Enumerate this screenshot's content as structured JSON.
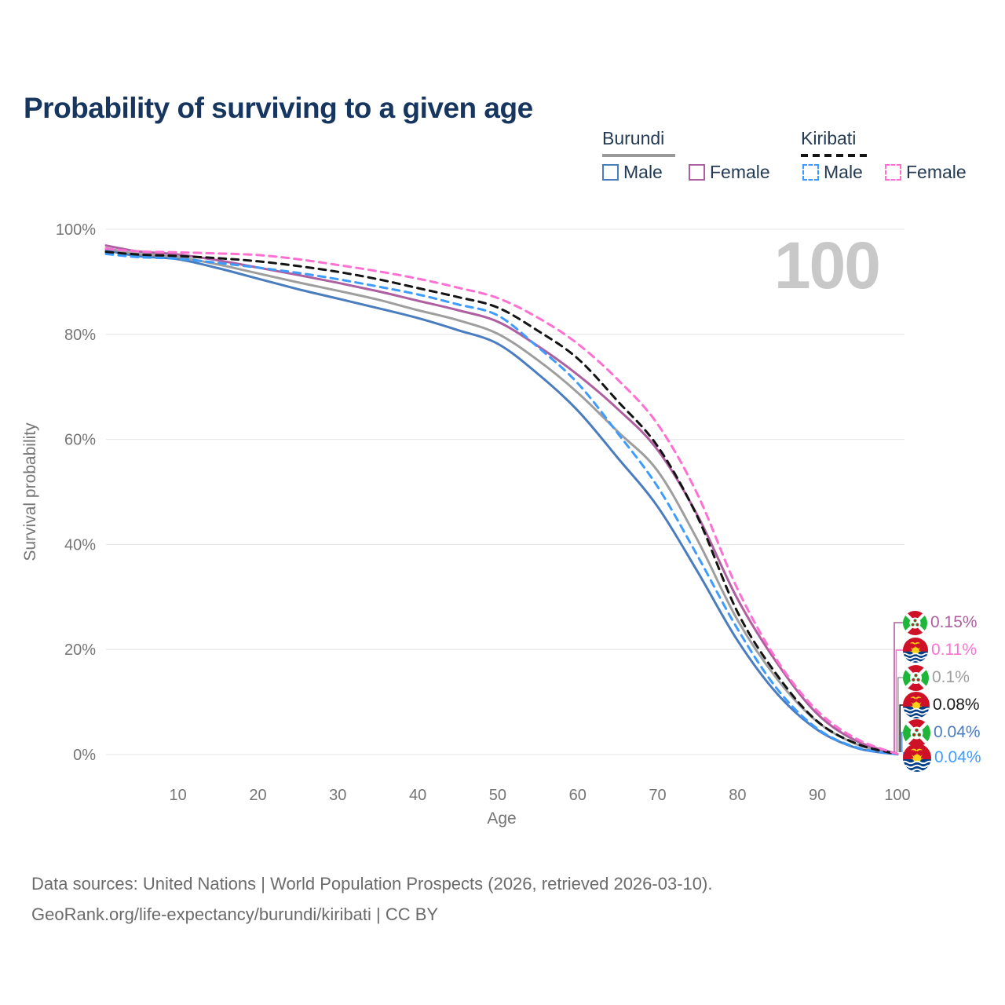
{
  "title": "Probability of surviving to a given age",
  "watermark": "100",
  "legend": {
    "groups": [
      {
        "label": "Burundi",
        "dash": false,
        "underline_color": "#9a9a9a",
        "items": [
          {
            "label": "Male",
            "color": "#4a7dbf",
            "dash": false
          },
          {
            "label": "Female",
            "color": "#ae5fa0",
            "dash": false
          }
        ]
      },
      {
        "label": "Kiribati",
        "dash": true,
        "underline_color": "#141414",
        "items": [
          {
            "label": "Male",
            "color": "#3e9bff",
            "dash": true
          },
          {
            "label": "Female",
            "color": "#ff70d2",
            "dash": true
          }
        ]
      }
    ]
  },
  "chart_data": {
    "type": "line",
    "title": "Probability of surviving to a given age",
    "xlabel": "Age",
    "ylabel": "Survival probability",
    "xlim": [
      1,
      100
    ],
    "ylim": [
      0,
      100
    ],
    "x_ticks": [
      10,
      20,
      30,
      40,
      50,
      60,
      70,
      80,
      90,
      100
    ],
    "y_ticks": [
      "0%",
      "20%",
      "40%",
      "60%",
      "80%",
      "100%"
    ],
    "grid": true,
    "legend_position": "top-right",
    "x": [
      1,
      5,
      10,
      15,
      20,
      25,
      30,
      35,
      40,
      45,
      50,
      55,
      60,
      65,
      70,
      75,
      80,
      85,
      90,
      95,
      100
    ],
    "series": [
      {
        "name": "Burundi Female",
        "country": "Burundi",
        "sex": "Female",
        "color": "#ae5fa0",
        "dash": false,
        "end_value_pct": 0.15,
        "values": [
          96.9,
          95.8,
          95.2,
          94.1,
          92.7,
          91.3,
          89.8,
          88.2,
          86.4,
          84.6,
          82.4,
          77.8,
          72.3,
          65.8,
          58.0,
          45.5,
          29.6,
          17.3,
          7.7,
          2.5,
          0.15
        ]
      },
      {
        "name": "Kiribati Female",
        "country": "Kiribati",
        "sex": "Female",
        "color": "#ff70d2",
        "dash": true,
        "end_value_pct": 0.11,
        "values": [
          96.3,
          95.8,
          95.6,
          95.4,
          95.1,
          94.3,
          93.2,
          92.0,
          90.6,
          88.9,
          86.9,
          83.2,
          78.2,
          71.4,
          62.9,
          49.5,
          31.5,
          17.8,
          8.3,
          2.9,
          0.11
        ]
      },
      {
        "name": "Burundi (both sexes)",
        "country": "Burundi",
        "sex": "Both",
        "color": "#9e9e9e",
        "dash": false,
        "end_value_pct": 0.1,
        "values": [
          96.4,
          95.3,
          94.7,
          93.3,
          91.6,
          89.9,
          88.3,
          86.6,
          84.6,
          82.7,
          80.1,
          75.1,
          68.9,
          61.5,
          54.0,
          40.8,
          25.6,
          14.3,
          6.2,
          1.9,
          0.1
        ]
      },
      {
        "name": "Kiribati (both sexes)",
        "country": "Kiribati",
        "sex": "Both",
        "color": "#141414",
        "dash": true,
        "end_value_pct": 0.08,
        "values": [
          95.7,
          95.2,
          94.9,
          94.5,
          93.9,
          93.0,
          91.9,
          90.5,
          88.8,
          87.1,
          85.1,
          80.7,
          75.4,
          67.3,
          58.7,
          45.2,
          27.1,
          15.0,
          6.3,
          2.0,
          0.08
        ]
      },
      {
        "name": "Burundi Male",
        "country": "Burundi",
        "sex": "Male",
        "color": "#4a7dbf",
        "dash": false,
        "end_value_pct": 0.04,
        "values": [
          96.0,
          94.9,
          94.3,
          92.6,
          90.6,
          88.6,
          86.8,
          85.0,
          83.1,
          80.8,
          78.2,
          72.5,
          65.5,
          56.5,
          47.2,
          34.8,
          21.7,
          11.5,
          4.7,
          1.2,
          0.04
        ]
      },
      {
        "name": "Kiribati Male",
        "country": "Kiribati",
        "sex": "Male",
        "color": "#3e9bff",
        "dash": true,
        "end_value_pct": 0.04,
        "values": [
          95.3,
          94.7,
          94.4,
          93.6,
          92.7,
          91.7,
          90.5,
          89.1,
          87.6,
          85.7,
          83.6,
          77.6,
          70.7,
          61.2,
          51.0,
          37.8,
          23.9,
          12.4,
          4.9,
          1.3,
          0.04
        ]
      }
    ]
  },
  "end_labels": [
    {
      "flag": "burundi",
      "value": "0.15%",
      "color": "#ae5fa0"
    },
    {
      "flag": "kiribati",
      "value": "0.11%",
      "color": "#ff70d2"
    },
    {
      "flag": "burundi",
      "value": "0.1%",
      "color": "#9e9e9e"
    },
    {
      "flag": "kiribati",
      "value": "0.08%",
      "color": "#1a1a1a"
    },
    {
      "flag": "burundi",
      "value": "0.04%",
      "color": "#4a7dbf"
    },
    {
      "flag": "kiribati",
      "value": "0.04%",
      "color": "#3e9bff"
    }
  ],
  "footer": {
    "line1": "Data sources: United Nations | World Population Prospects (2026, retrieved 2026-03-10).",
    "line2": "GeoRank.org/life-expectancy/burundi/kiribati | CC BY"
  }
}
